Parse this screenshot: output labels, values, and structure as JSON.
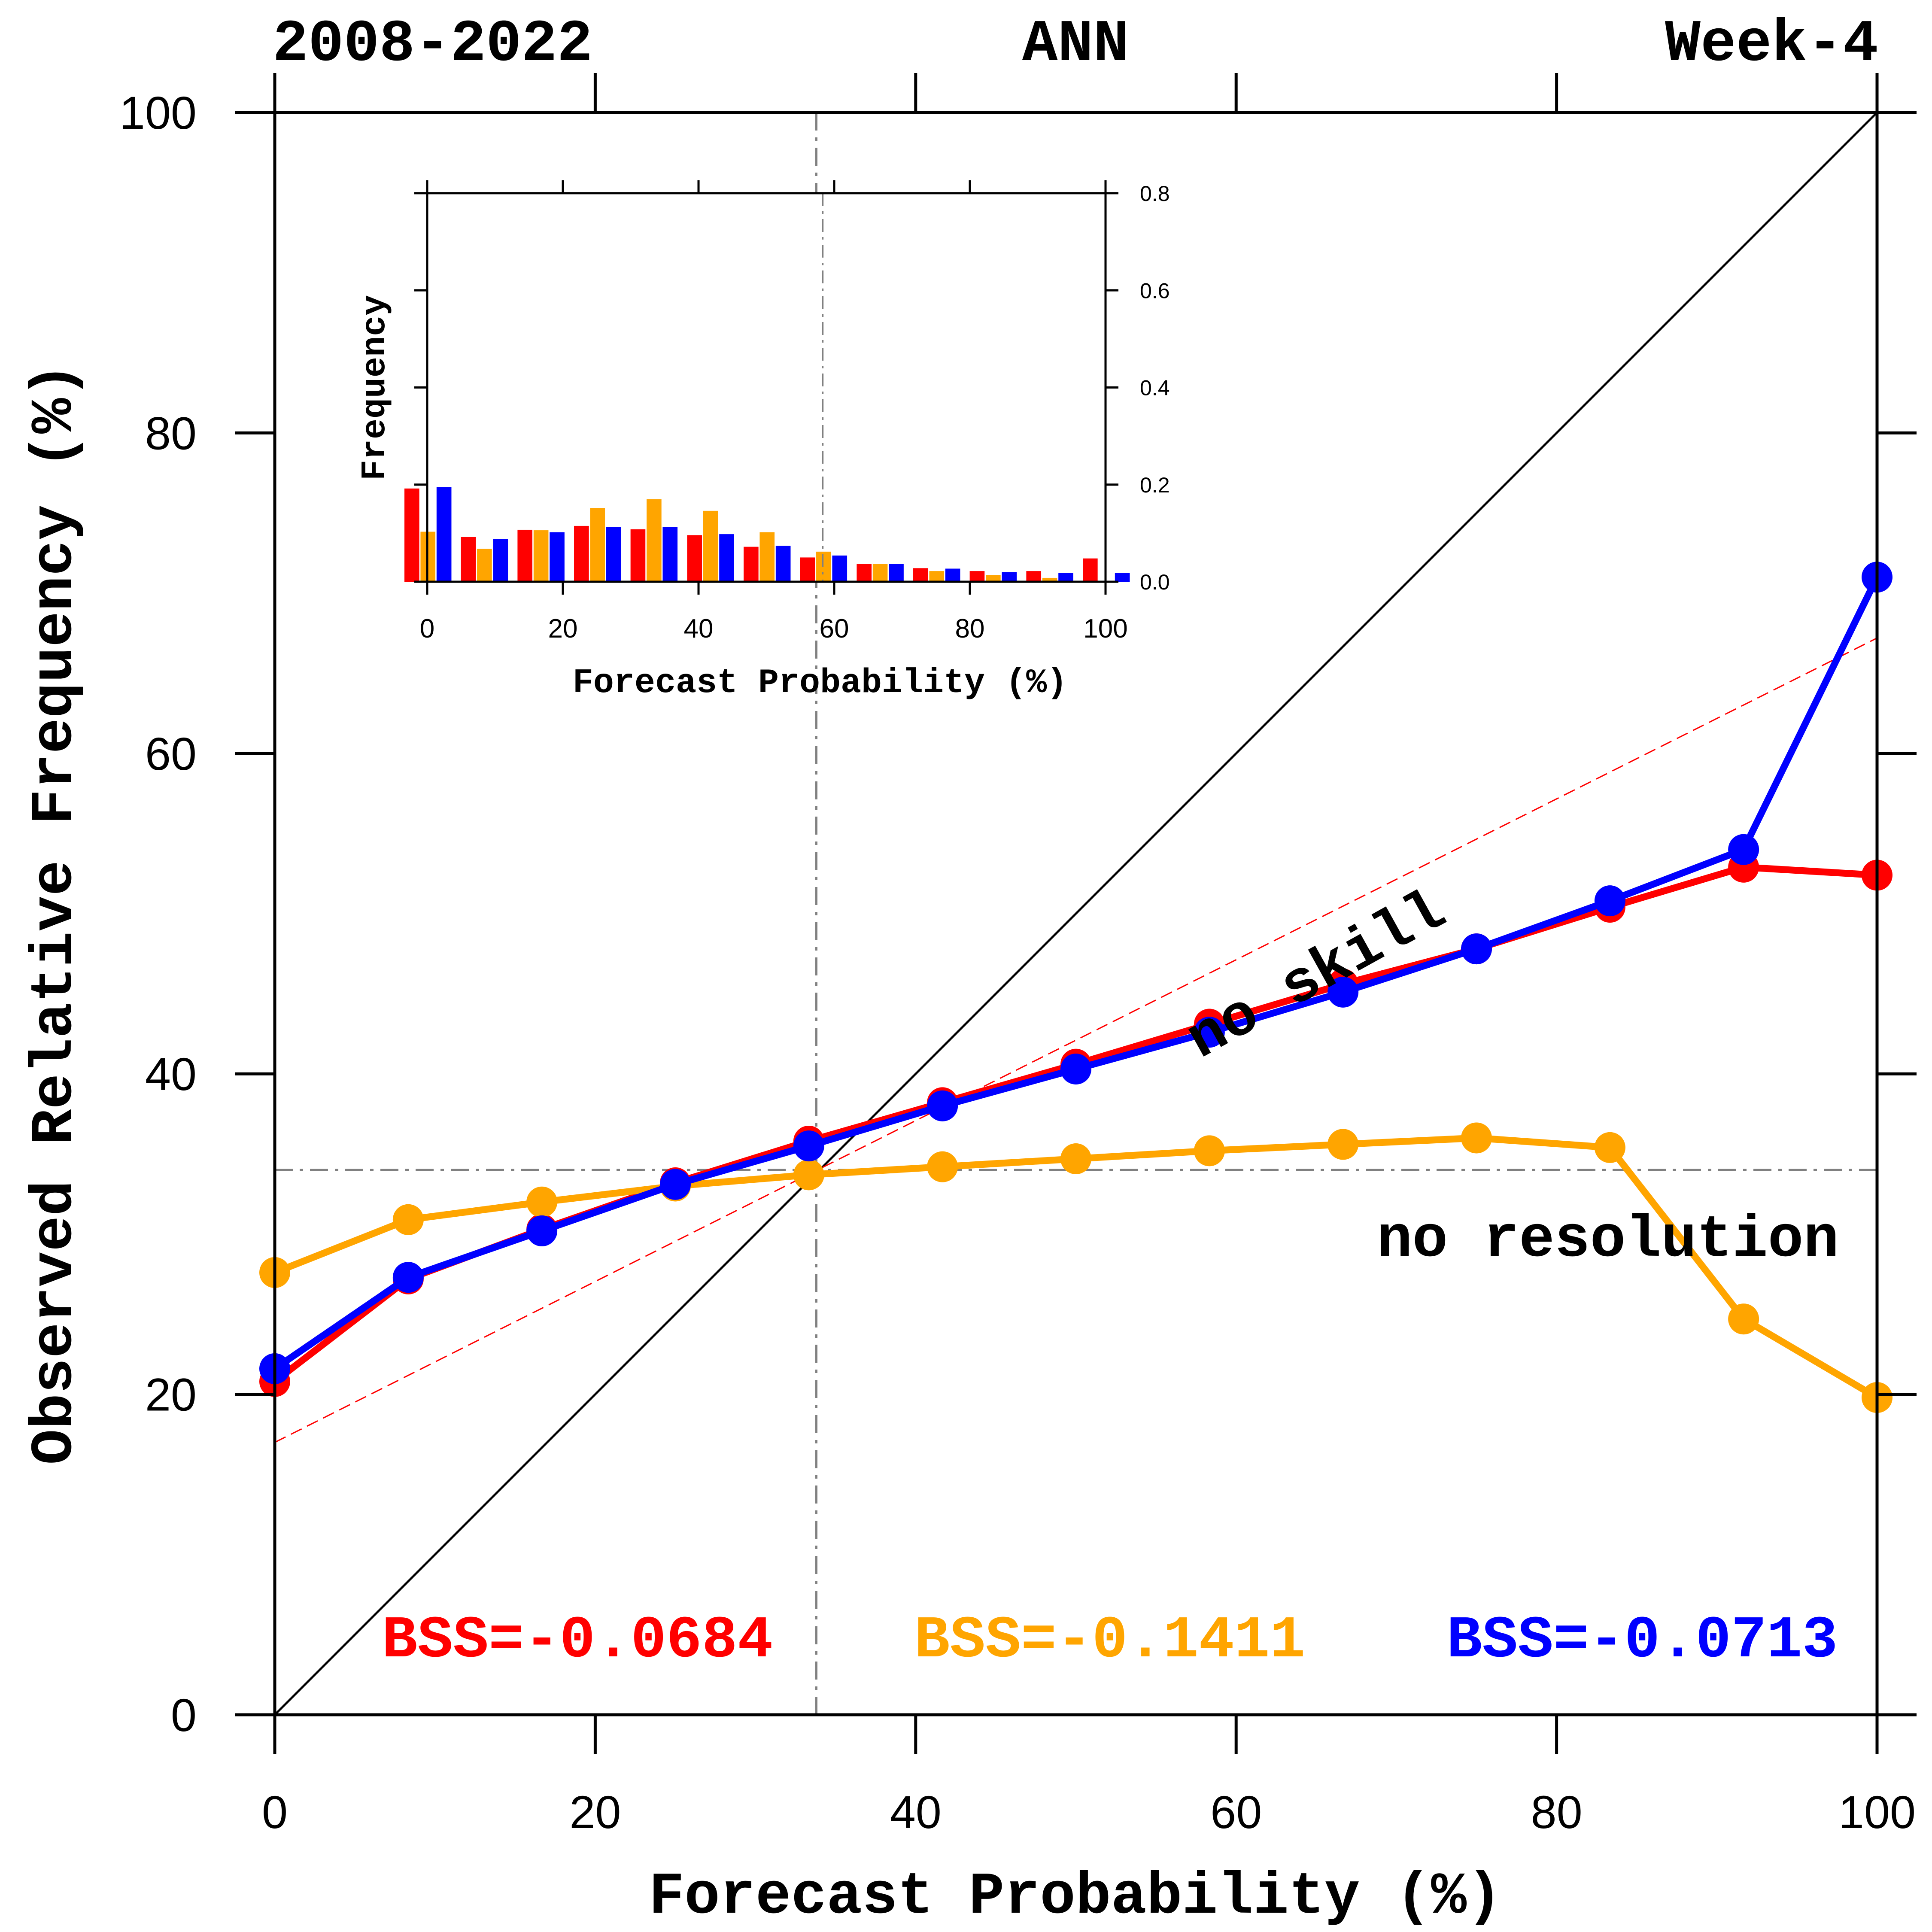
{
  "header": {
    "left": "2008-2022",
    "center": "ANN",
    "right": "Week-4"
  },
  "annotations": {
    "no_skill": "no skill",
    "no_resolution": "no resolution"
  },
  "bss": [
    {
      "label": "BSS=-0.0684",
      "color": "#ff0000"
    },
    {
      "label": "BSS=-0.1411",
      "color": "#ffa500"
    },
    {
      "label": "BSS=-0.0713",
      "color": "#0000ff"
    }
  ],
  "chart_data": [
    {
      "type": "line",
      "xlabel": "Forecast Probability (%)",
      "ylabel": "Observed Relative Frequency (%)",
      "xlim": [
        0,
        100
      ],
      "ylim": [
        0,
        100
      ],
      "xticks": [
        0,
        20,
        40,
        60,
        80,
        100
      ],
      "yticks": [
        0,
        20,
        40,
        60,
        80,
        100
      ],
      "x": [
        0,
        8.33,
        16.67,
        25,
        33.33,
        41.67,
        50,
        58.33,
        66.67,
        75,
        83.33,
        91.67,
        100
      ],
      "series": [
        {
          "color": "#ff0000",
          "values": [
            20.8,
            27.2,
            30.3,
            33.2,
            35.8,
            38.2,
            40.6,
            43.1,
            45.6,
            47.8,
            50.4,
            52.9,
            52.4
          ]
        },
        {
          "color": "#ffa500",
          "values": [
            27.6,
            30.9,
            32.0,
            33.0,
            33.7,
            34.2,
            34.7,
            35.2,
            35.6,
            36.0,
            35.4,
            24.7,
            19.8
          ]
        },
        {
          "color": "#0000ff",
          "values": [
            21.6,
            27.3,
            30.2,
            33.1,
            35.5,
            38.0,
            40.3,
            42.6,
            45.1,
            47.8,
            50.8,
            54.0,
            71.0
          ]
        }
      ],
      "reference_lines": {
        "diagonal": {
          "from": [
            0,
            0
          ],
          "to": [
            100,
            100
          ],
          "color": "#000000"
        },
        "no_skill": {
          "from": [
            0,
            17.0
          ],
          "to": [
            100,
            67.2
          ],
          "color": "#ff0000",
          "style": "dashed"
        },
        "no_resolution": {
          "y": 34.0,
          "color": "#808080",
          "style": "dash-dot"
        },
        "climatology": {
          "x": 33.8,
          "color": "#808080",
          "style": "dash-dot"
        }
      }
    },
    {
      "type": "bar",
      "xlabel": "Forecast Probability (%)",
      "ylabel": "Frequency",
      "xlim": [
        0,
        100
      ],
      "ylim": [
        0,
        0.8
      ],
      "xticks": [
        0,
        20,
        40,
        60,
        80,
        100
      ],
      "yticks": [
        "0.0",
        "0.2",
        "0.4",
        "0.6",
        "0.8"
      ],
      "yaxis_side": "right",
      "categories": [
        0,
        8.33,
        16.67,
        25,
        33.33,
        41.67,
        50,
        58.33,
        66.67,
        75,
        83.33,
        91.67,
        100
      ],
      "series": [
        {
          "color": "#ff0000",
          "values": [
            0.192,
            0.092,
            0.107,
            0.115,
            0.108,
            0.096,
            0.072,
            0.05,
            0.037,
            0.028,
            0.022,
            0.022,
            0.048
          ]
        },
        {
          "color": "#ffa500",
          "values": [
            0.103,
            0.068,
            0.106,
            0.152,
            0.17,
            0.146,
            0.102,
            0.062,
            0.037,
            0.022,
            0.014,
            0.008,
            0.0
          ]
        },
        {
          "color": "#0000ff",
          "values": [
            0.195,
            0.088,
            0.102,
            0.113,
            0.113,
            0.098,
            0.074,
            0.054,
            0.037,
            0.027,
            0.02,
            0.018,
            0.018
          ]
        }
      ]
    }
  ]
}
